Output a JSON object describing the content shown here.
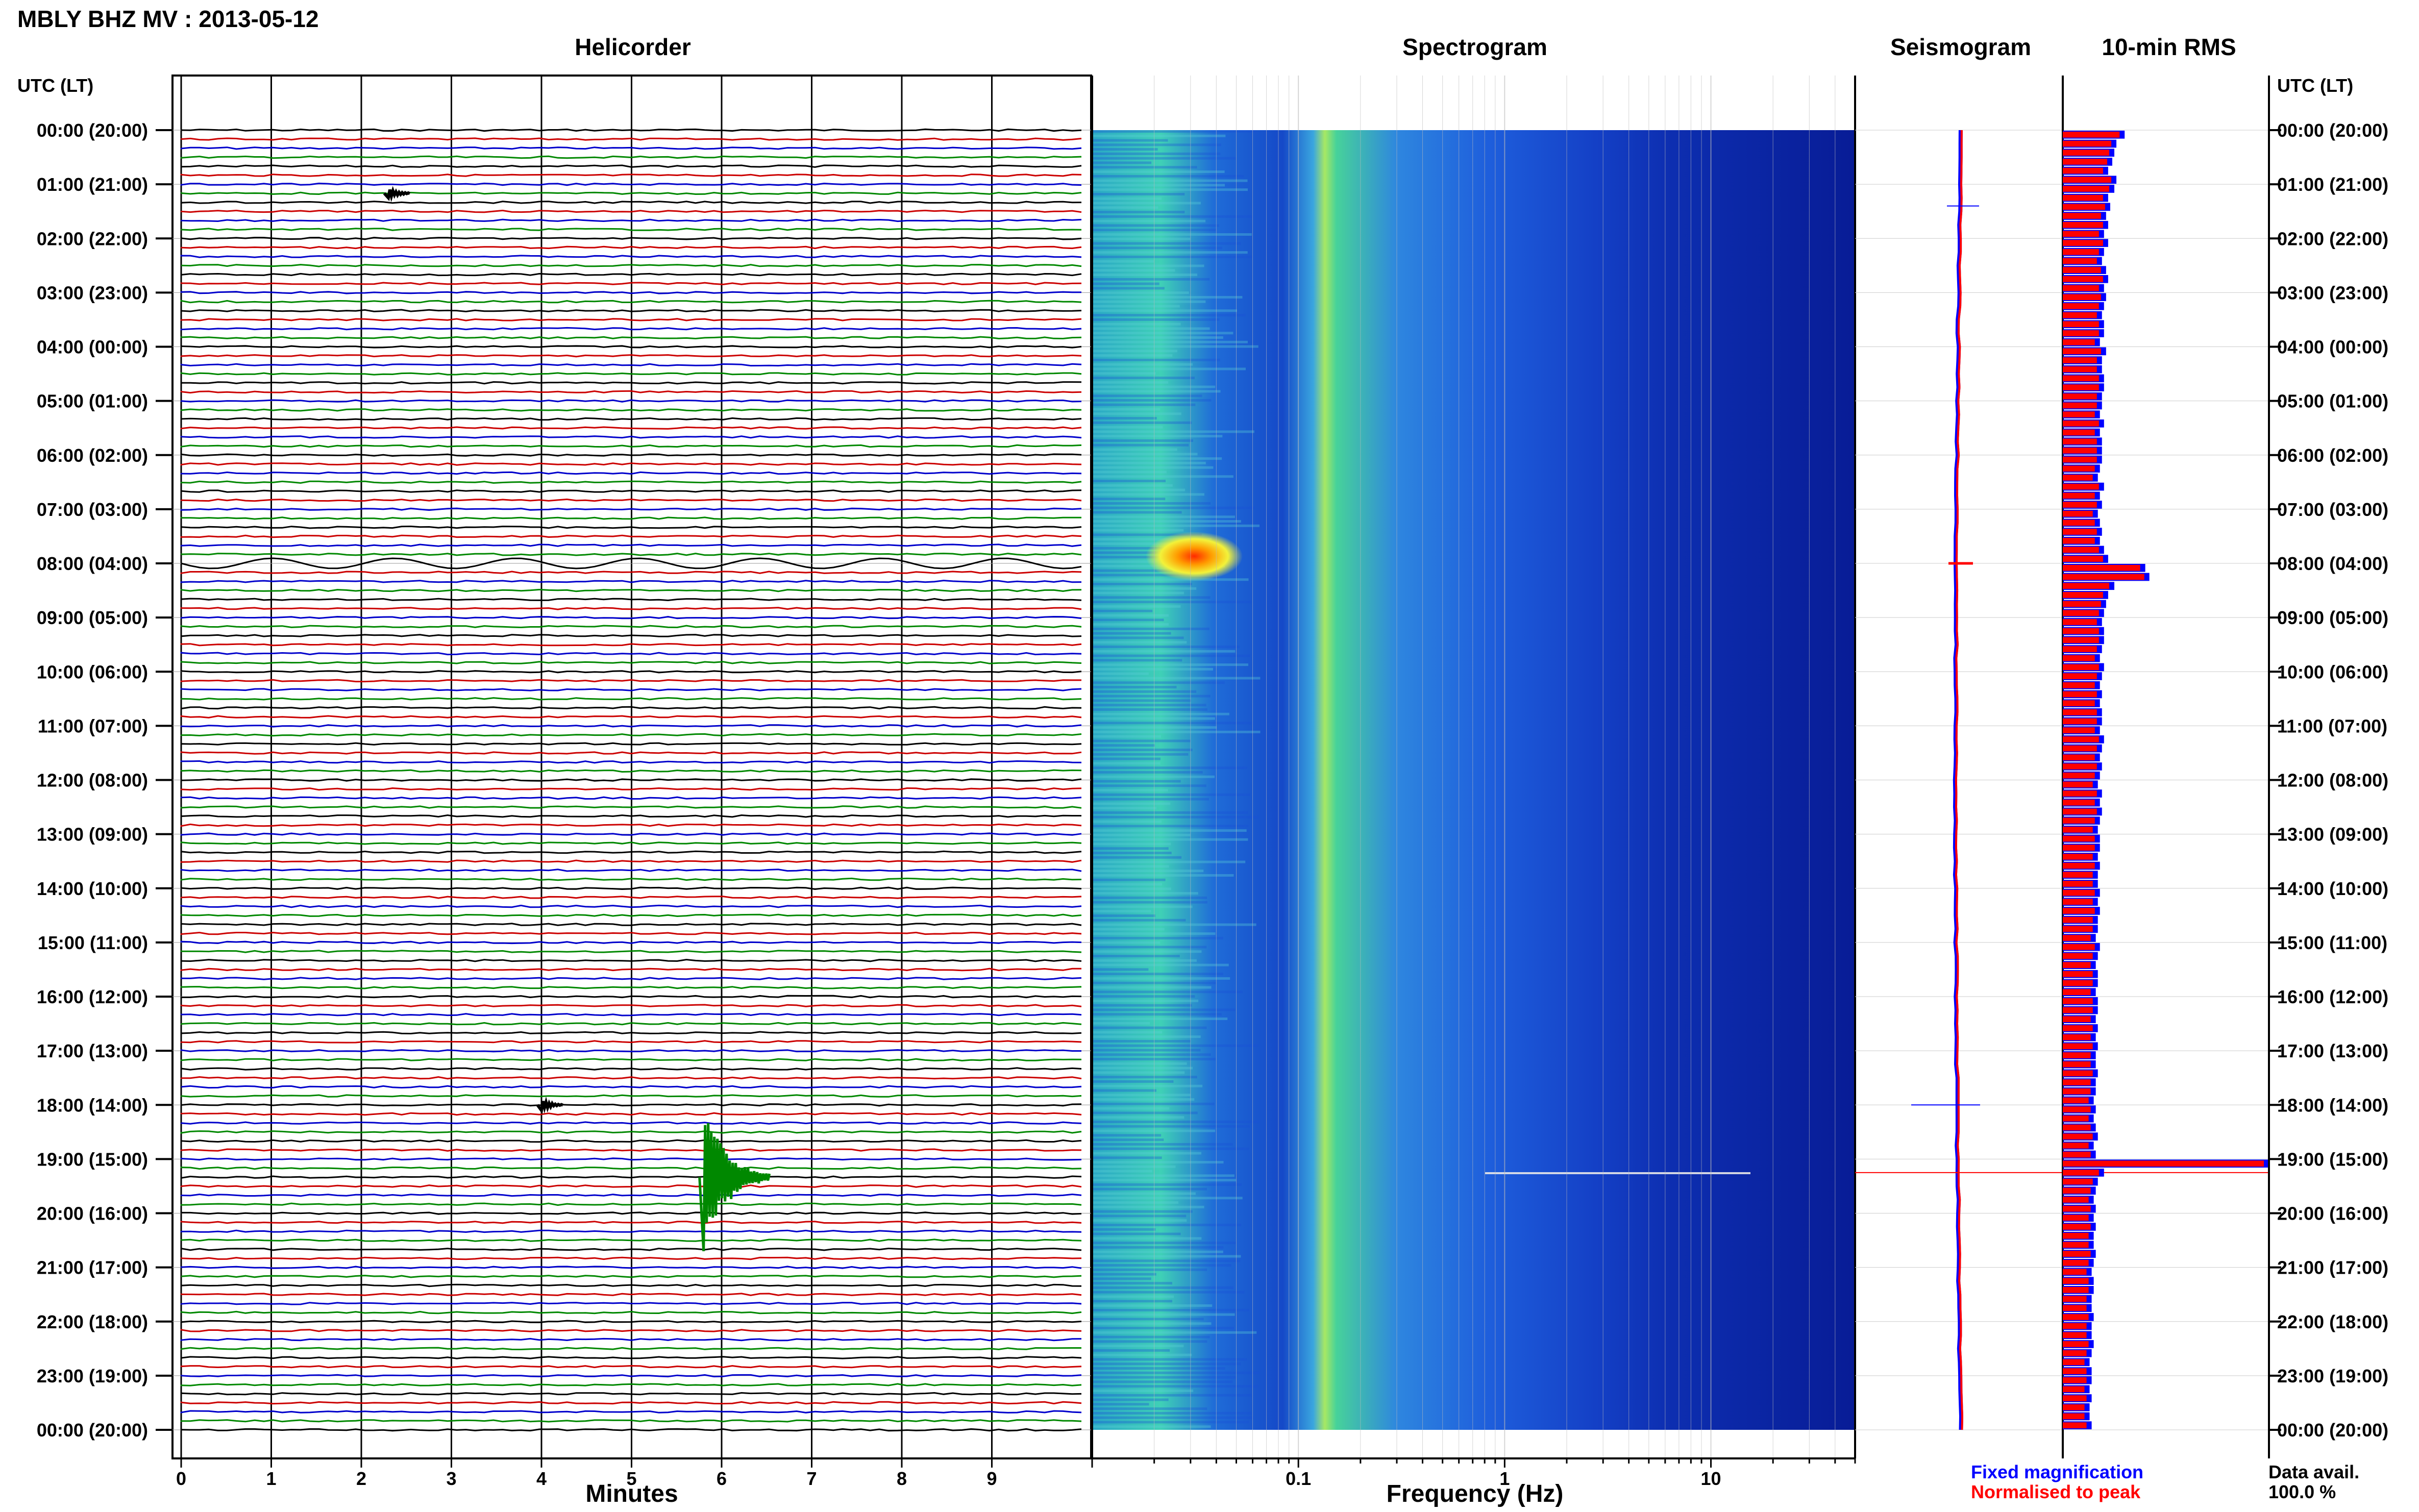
{
  "header": {
    "title": "MBLY BHZ MV : 2013-05-12"
  },
  "panels": {
    "helicorder": "Helicorder",
    "spectrogram": "Spectrogram",
    "seismogram": "Seismogram",
    "rms": "10-min RMS"
  },
  "axes": {
    "left_header": "UTC (LT)",
    "right_header": "UTC (LT)",
    "minutes_label": "Minutes",
    "frequency_label": "Frequency (Hz)"
  },
  "legend": {
    "fixed": "Fixed magnification",
    "normalised": "Normalised to peak",
    "avail_label": "Data avail.",
    "avail_value": "100.0 %"
  },
  "colors": {
    "trace_cycle": [
      "#000000",
      "#cc0000",
      "#0000cc",
      "#008800"
    ],
    "fixed": "#0000ff",
    "normalised": "#ff0000",
    "spectro_bg": "#0a1a9a"
  },
  "chart_data": {
    "type": "helicorder",
    "time_ticks": [
      "00:00 (20:00)",
      "01:00 (21:00)",
      "02:00 (22:00)",
      "03:00 (23:00)",
      "04:00 (00:00)",
      "05:00 (01:00)",
      "06:00 (02:00)",
      "07:00 (03:00)",
      "08:00 (04:00)",
      "09:00 (05:00)",
      "10:00 (06:00)",
      "11:00 (07:00)",
      "12:00 (08:00)",
      "13:00 (09:00)",
      "14:00 (10:00)",
      "15:00 (11:00)",
      "16:00 (12:00)",
      "17:00 (13:00)",
      "18:00 (14:00)",
      "19:00 (15:00)",
      "20:00 (16:00)",
      "21:00 (17:00)",
      "22:00 (18:00)",
      "23:00 (19:00)",
      "00:00 (20:00)"
    ],
    "minutes_ticks": [
      "0",
      "1",
      "2",
      "3",
      "4",
      "5",
      "6",
      "7",
      "8",
      "9"
    ],
    "minutes_range": [
      0,
      10
    ],
    "trace_rows_per_hour": 6,
    "frequency_ticks": [
      {
        "value": 0.1,
        "label": "0.1"
      },
      {
        "value": 1,
        "label": "1"
      },
      {
        "value": 10,
        "label": "10"
      }
    ],
    "frequency_range": [
      0.01,
      50
    ],
    "frequency_scale": "log",
    "events": [
      {
        "time": "08:00",
        "minute_start": 0,
        "minute_end": 10,
        "description": "long-period teleseismic wave train"
      },
      {
        "time": "19:20",
        "minute": 5.8,
        "amplitude": "large"
      },
      {
        "time": "01:10",
        "minute": 2.3,
        "amplitude": "small"
      },
      {
        "time": "18:00",
        "minute": 4.0,
        "amplitude": "small"
      }
    ],
    "rms_normalised": [
      0.3,
      0.26,
      0.25,
      0.24,
      0.22,
      0.26,
      0.25,
      0.22,
      0.23,
      0.21,
      0.22,
      0.2,
      0.22,
      0.2,
      0.19,
      0.21,
      0.22,
      0.2,
      0.21,
      0.2,
      0.19,
      0.2,
      0.2,
      0.18,
      0.21,
      0.19,
      0.19,
      0.2,
      0.2,
      0.19,
      0.19,
      0.18,
      0.2,
      0.18,
      0.19,
      0.19,
      0.19,
      0.18,
      0.17,
      0.2,
      0.18,
      0.19,
      0.17,
      0.18,
      0.19,
      0.18,
      0.2,
      0.22,
      0.4,
      0.42,
      0.25,
      0.22,
      0.21,
      0.2,
      0.19,
      0.2,
      0.2,
      0.19,
      0.18,
      0.2,
      0.19,
      0.18,
      0.19,
      0.18,
      0.19,
      0.19,
      0.18,
      0.2,
      0.19,
      0.18,
      0.19,
      0.18,
      0.17,
      0.19,
      0.18,
      0.19,
      0.18,
      0.17,
      0.18,
      0.18,
      0.17,
      0.18,
      0.17,
      0.17,
      0.18,
      0.17,
      0.18,
      0.17,
      0.17,
      0.16,
      0.18,
      0.17,
      0.16,
      0.17,
      0.17,
      0.16,
      0.17,
      0.17,
      0.16,
      0.17,
      0.16,
      0.17,
      0.16,
      0.16,
      0.17,
      0.16,
      0.16,
      0.15,
      0.16,
      0.15,
      0.16,
      0.17,
      0.15,
      0.16,
      1.0,
      0.2,
      0.17,
      0.16,
      0.15,
      0.16,
      0.15,
      0.16,
      0.15,
      0.15,
      0.16,
      0.15,
      0.14,
      0.15,
      0.15,
      0.14,
      0.14,
      0.15,
      0.14,
      0.14,
      0.15,
      0.14,
      0.13,
      0.14,
      0.14,
      0.13,
      0.14,
      0.13,
      0.13,
      0.14
    ]
  }
}
